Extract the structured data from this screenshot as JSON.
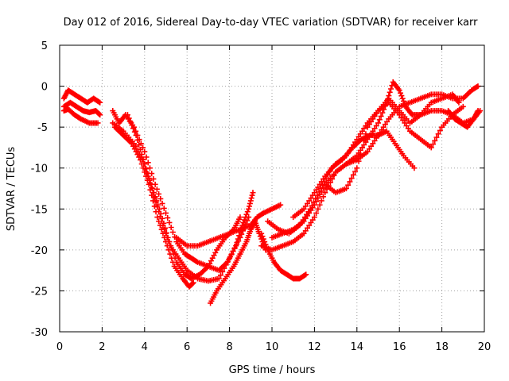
{
  "chart_data": {
    "type": "scatter",
    "title": "Day 012 of 2016, Sidereal Day-to-day VTEC variation (SDTVAR) for receiver karr",
    "xlabel": "GPS time / hours",
    "ylabel": "SDTVAR / TECUs",
    "xlim": [
      0,
      20
    ],
    "ylim": [
      -30,
      5
    ],
    "xticks": [
      0,
      2,
      4,
      6,
      8,
      10,
      12,
      14,
      16,
      18,
      20
    ],
    "yticks": [
      5,
      0,
      -5,
      -10,
      -15,
      -20,
      -25,
      -30
    ],
    "grid": true,
    "marker": "+",
    "color": "#ff0000",
    "series": [
      {
        "name": "trace-1",
        "x": [
          0.2,
          0.4,
          0.7,
          1.0,
          1.3,
          1.6,
          1.9
        ],
        "y": [
          -1.5,
          -0.5,
          -1.0,
          -1.5,
          -2.0,
          -1.5,
          -2.0
        ]
      },
      {
        "name": "trace-2",
        "x": [
          0.2,
          0.5,
          0.8,
          1.1,
          1.4,
          1.7,
          1.9
        ],
        "y": [
          -2.5,
          -2.0,
          -2.5,
          -3.0,
          -3.2,
          -3.0,
          -3.5
        ]
      },
      {
        "name": "trace-3",
        "x": [
          0.2,
          0.4,
          0.7,
          1.0,
          1.4,
          1.8
        ],
        "y": [
          -3.0,
          -2.8,
          -3.5,
          -4.0,
          -4.5,
          -4.5
        ]
      },
      {
        "name": "trace-4",
        "x": [
          2.5,
          2.8,
          3.1,
          3.5,
          4.0,
          4.5,
          5.0,
          5.5,
          5.9,
          6.2,
          6.5,
          7.0,
          7.5,
          7.9,
          8.3,
          8.6,
          8.9,
          9.1
        ],
        "y": [
          -3.0,
          -4.5,
          -3.5,
          -5.0,
          -8.0,
          -12.0,
          -15.5,
          -19.0,
          -20.5,
          -21.0,
          -21.5,
          -22.0,
          -22.5,
          -21.5,
          -19.5,
          -17.0,
          -15.0,
          -13.0
        ]
      },
      {
        "name": "trace-5",
        "x": [
          2.5,
          3.0,
          3.5,
          3.9,
          4.3,
          4.7,
          5.1,
          5.5,
          5.9,
          6.2,
          6.6,
          7.0,
          7.4,
          7.8,
          8.2,
          8.5
        ],
        "y": [
          -4.5,
          -5.5,
          -7.0,
          -9.0,
          -12.0,
          -15.0,
          -18.5,
          -21.5,
          -23.0,
          -23.5,
          -23.0,
          -22.0,
          -20.0,
          -18.5,
          -17.5,
          -16.0
        ]
      },
      {
        "name": "trace-6",
        "x": [
          3.2,
          3.6,
          4.0,
          4.4,
          4.8,
          5.2,
          5.6,
          6.0,
          6.5,
          7.0,
          7.5,
          8.0,
          8.5,
          8.9
        ],
        "y": [
          -3.5,
          -6.0,
          -9.5,
          -13.0,
          -16.5,
          -19.5,
          -21.0,
          -22.5,
          -23.5,
          -23.8,
          -23.5,
          -21.0,
          -18.5,
          -16.0
        ]
      },
      {
        "name": "trace-7",
        "x": [
          2.6,
          3.0,
          3.4,
          3.8,
          4.2,
          4.6,
          5.0,
          5.4,
          5.8,
          6.1,
          6.3
        ],
        "y": [
          -5.0,
          -6.0,
          -7.0,
          -9.0,
          -12.0,
          -16.0,
          -19.0,
          -22.0,
          -23.5,
          -24.5,
          -24.0
        ]
      },
      {
        "name": "trace-8",
        "x": [
          5.5,
          6.0,
          6.5,
          7.0,
          7.5,
          8.0,
          8.5,
          9.0,
          9.3,
          9.6,
          10.0,
          10.4
        ],
        "y": [
          -18.5,
          -19.5,
          -19.5,
          -19.0,
          -18.5,
          -18.0,
          -17.5,
          -17.0,
          -16.0,
          -15.5,
          -15.0,
          -14.5
        ]
      },
      {
        "name": "trace-9",
        "x": [
          7.1,
          7.4,
          7.8,
          8.2,
          8.5,
          8.8,
          9.0,
          9.2,
          9.4,
          9.7
        ],
        "y": [
          -26.5,
          -25.0,
          -23.5,
          -22.0,
          -20.5,
          -19.0,
          -17.5,
          -16.5,
          -18.0,
          -20.0
        ]
      },
      {
        "name": "trace-10",
        "x": [
          9.5,
          9.8,
          10.1,
          10.4,
          10.7,
          11.0,
          11.3,
          11.6
        ],
        "y": [
          -18.0,
          -20.0,
          -21.5,
          -22.5,
          -23.0,
          -23.5,
          -23.5,
          -23.0
        ]
      },
      {
        "name": "trace-11",
        "x": [
          9.5,
          10.0,
          10.5,
          11.0,
          11.5,
          12.0,
          12.5,
          13.0,
          13.5,
          14.0,
          14.5,
          15.0,
          15.4,
          15.7,
          16.0,
          16.3,
          16.6,
          17.0,
          17.5,
          18.0,
          18.5,
          19.0,
          19.5,
          19.7
        ],
        "y": [
          -19.5,
          -20.0,
          -19.5,
          -19.0,
          -18.0,
          -16.0,
          -13.0,
          -10.5,
          -9.5,
          -8.5,
          -6.5,
          -4.5,
          -2.0,
          0.5,
          -0.5,
          -2.5,
          -3.5,
          -3.5,
          -3.0,
          -3.0,
          -3.5,
          -4.5,
          -4.0,
          -3.0
        ]
      },
      {
        "name": "trace-12",
        "x": [
          10.0,
          10.5,
          11.0,
          11.5,
          12.0,
          12.5,
          13.0,
          13.5,
          14.0,
          14.5,
          15.0,
          15.5,
          16.0,
          16.5,
          17.0,
          17.5,
          18.0,
          18.5,
          19.0,
          19.4,
          19.7
        ],
        "y": [
          -18.5,
          -18.0,
          -17.5,
          -16.5,
          -14.5,
          -12.0,
          -10.5,
          -9.5,
          -9.0,
          -8.0,
          -6.0,
          -4.0,
          -2.5,
          -2.0,
          -1.5,
          -1.0,
          -1.0,
          -1.5,
          -1.5,
          -0.5,
          0.0
        ]
      },
      {
        "name": "trace-13",
        "x": [
          9.8,
          10.3,
          10.8,
          11.3,
          11.8,
          12.3,
          12.8,
          13.3,
          13.8,
          14.2,
          14.6,
          15.0,
          15.4,
          15.8,
          16.2,
          16.7
        ],
        "y": [
          -16.5,
          -17.5,
          -18.0,
          -17.0,
          -15.0,
          -12.5,
          -10.0,
          -9.0,
          -7.5,
          -6.5,
          -6.0,
          -6.0,
          -5.5,
          -7.0,
          -8.5,
          -10.0
        ]
      },
      {
        "name": "trace-14",
        "x": [
          11.0,
          11.5,
          12.0,
          12.5,
          13.0,
          13.5,
          14.0,
          14.5,
          15.0,
          15.5,
          16.0,
          16.5,
          17.0,
          17.5,
          18.0,
          18.5,
          19.0
        ],
        "y": [
          -16.0,
          -15.0,
          -13.0,
          -11.0,
          -9.5,
          -8.5,
          -6.5,
          -4.5,
          -3.0,
          -2.0,
          -3.5,
          -5.5,
          -6.5,
          -7.5,
          -5.0,
          -3.5,
          -2.5
        ]
      },
      {
        "name": "trace-15",
        "x": [
          12.5,
          13.0,
          13.5,
          14.0,
          14.5,
          15.0,
          15.5,
          16.0,
          16.5,
          17.0,
          17.5,
          18.0,
          18.5,
          18.8
        ],
        "y": [
          -12.0,
          -13.0,
          -12.5,
          -10.0,
          -5.0,
          -3.0,
          -1.5,
          -3.0,
          -4.5,
          -3.5,
          -2.0,
          -1.5,
          -1.0,
          -2.0
        ]
      },
      {
        "name": "trace-16",
        "x": [
          18.3,
          18.6,
          18.9,
          19.2,
          19.5,
          19.8
        ],
        "y": [
          -3.0,
          -4.0,
          -4.5,
          -5.0,
          -4.0,
          -3.0
        ]
      }
    ]
  }
}
